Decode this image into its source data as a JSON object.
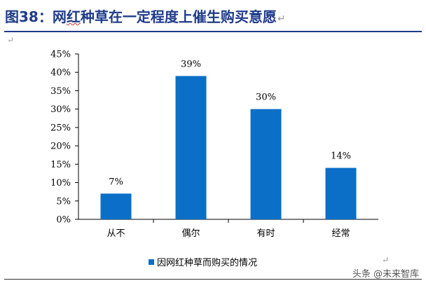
{
  "header": {
    "figure_no": "图38：",
    "title_pre": "网",
    "title_wavy": "红",
    "title_post": "种草在一定程度上催生购买意愿",
    "return_mark": "↵"
  },
  "para_marks": [
    "↵",
    "↵"
  ],
  "watermark": "头条 @未来智库",
  "chart_data": {
    "type": "bar",
    "categories": [
      "从不",
      "偶尔",
      "有时",
      "经常"
    ],
    "series": [
      {
        "name": "因网红种草而购买的情况",
        "values": [
          7,
          39,
          30,
          14
        ],
        "color": "#0b6fc7"
      }
    ],
    "data_labels": [
      "7%",
      "39%",
      "30%",
      "14%"
    ],
    "y_ticks": [
      "0%",
      "5%",
      "10%",
      "15%",
      "20%",
      "25%",
      "30%",
      "35%",
      "40%",
      "45%"
    ],
    "ylim": [
      0,
      45
    ],
    "grid": false,
    "legend_position": "bottom-center"
  }
}
